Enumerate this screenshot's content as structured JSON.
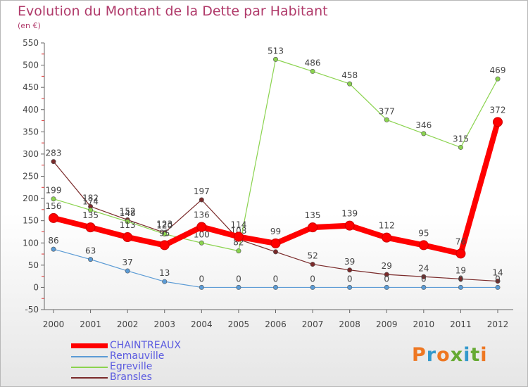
{
  "title": "Evolution du Montant de la Dette par Habitant",
  "subtitle": "(en €)",
  "logo": "Proxiti",
  "logo_colors": [
    "#ee7722",
    "#3399cc",
    "#ee7722",
    "#66aa33",
    "#3399cc",
    "#66aa33",
    "#ee7722"
  ],
  "chart_data": {
    "type": "line",
    "x": [
      "2000",
      "2001",
      "2002",
      "2003",
      "2004",
      "2005",
      "2006",
      "2007",
      "2008",
      "2009",
      "2010",
      "2011",
      "2012"
    ],
    "ylim": [
      -50,
      550
    ],
    "yticks": [
      -50,
      0,
      50,
      100,
      150,
      200,
      250,
      300,
      350,
      400,
      450,
      500,
      550
    ],
    "grid": false,
    "legend_position": "bottom-left",
    "series": [
      {
        "name": "CHAINTREAUX",
        "color": "#ff0000",
        "values": [
          156,
          135,
          113,
          95,
          136,
          114,
          99,
          135,
          139,
          112,
          95,
          76,
          372
        ]
      },
      {
        "name": "Remauville",
        "color": "#5b9bd5",
        "values": [
          86,
          63,
          37,
          13,
          0,
          0,
          0,
          0,
          0,
          0,
          0,
          0,
          0
        ]
      },
      {
        "name": "Egreville",
        "color": "#8bd34f",
        "values": [
          199,
          174,
          148,
          120,
          100,
          82,
          513,
          486,
          458,
          377,
          346,
          315,
          469
        ]
      },
      {
        "name": "Bransles",
        "color": "#7a2a2a",
        "values": [
          283,
          182,
          152,
          123,
          197,
          108,
          80,
          52,
          39,
          29,
          24,
          19,
          14
        ]
      }
    ]
  }
}
